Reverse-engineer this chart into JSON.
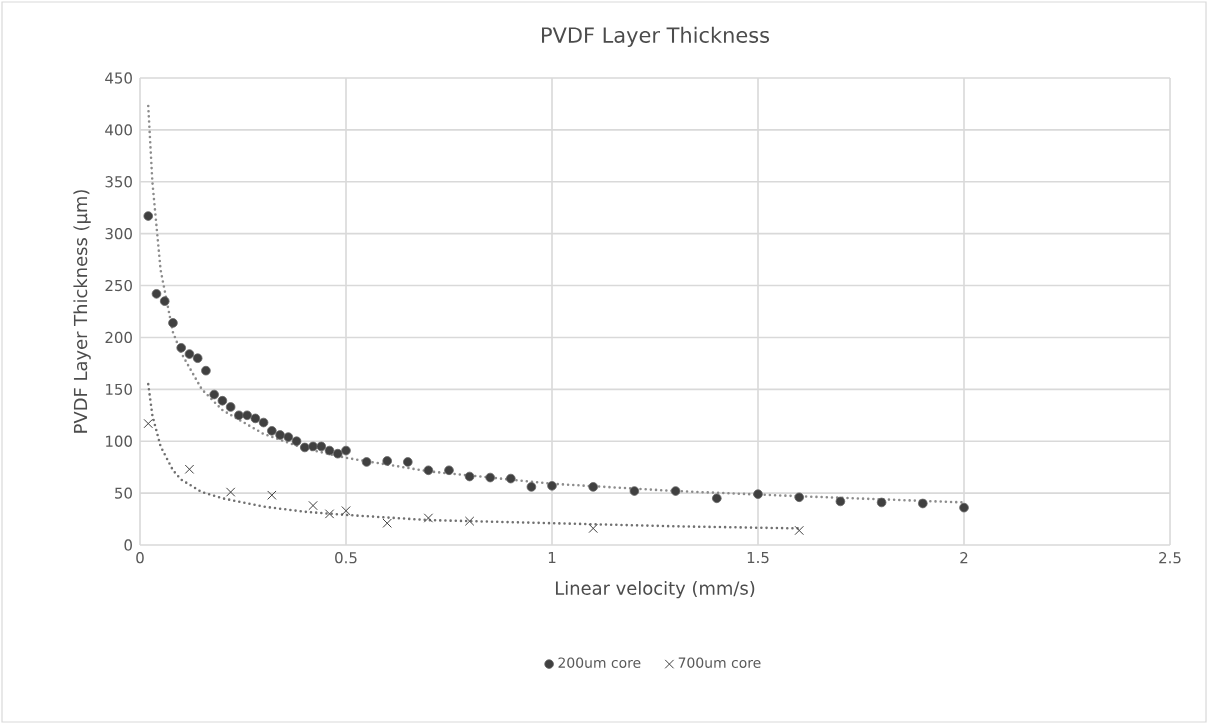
{
  "chart_data": {
    "type": "scatter",
    "title": "PVDF Layer Thickness",
    "xlabel": "Linear velocity (mm/s)",
    "ylabel": "PVDF Layer Thickness (µm)",
    "xlim": [
      0,
      2.5
    ],
    "xticks": [
      0,
      0.5,
      1,
      1.5,
      2,
      2.5
    ],
    "ylim": [
      0,
      450
    ],
    "yticks": [
      0,
      50,
      100,
      150,
      200,
      250,
      300,
      350,
      400,
      450
    ],
    "grid": true,
    "legend": "bottom",
    "series": [
      {
        "name": "200um core",
        "marker": "circle",
        "color": "#404040",
        "x": [
          0.02,
          0.04,
          0.06,
          0.08,
          0.1,
          0.12,
          0.14,
          0.16,
          0.18,
          0.2,
          0.22,
          0.24,
          0.26,
          0.28,
          0.3,
          0.32,
          0.34,
          0.36,
          0.38,
          0.4,
          0.42,
          0.44,
          0.46,
          0.48,
          0.5,
          0.55,
          0.6,
          0.65,
          0.7,
          0.75,
          0.8,
          0.85,
          0.9,
          0.95,
          1.0,
          1.1,
          1.2,
          1.3,
          1.4,
          1.5,
          1.6,
          1.7,
          1.8,
          1.9,
          2.0
        ],
        "values": [
          317,
          242,
          235,
          214,
          190,
          184,
          180,
          168,
          145,
          139,
          133,
          125,
          125,
          122,
          118,
          110,
          106,
          104,
          100,
          94,
          95,
          95,
          91,
          88,
          91,
          80,
          81,
          80,
          72,
          72,
          66,
          65,
          64,
          56,
          57,
          56,
          52,
          52,
          45,
          49,
          46,
          42,
          41,
          40,
          36
        ]
      },
      {
        "name": "700um core",
        "marker": "cross",
        "color": "#404040",
        "x": [
          0.02,
          0.12,
          0.22,
          0.32,
          0.42,
          0.46,
          0.5,
          0.6,
          0.7,
          0.8,
          1.1,
          1.6
        ],
        "values": [
          117,
          73,
          51,
          48,
          38,
          30,
          33,
          21,
          26,
          23,
          16,
          14
        ]
      },
      {
        "type": "line",
        "marker": "none",
        "line_style": "dotted",
        "color": "#8c8c8c",
        "x": [
          0.02,
          0.03,
          0.05,
          0.08,
          0.1,
          0.15,
          0.2,
          0.3,
          0.4,
          0.5,
          0.7,
          1.0,
          1.3,
          1.6,
          2.0
        ],
        "values": [
          423,
          350,
          265,
          205,
          185,
          150,
          130,
          107,
          93,
          84,
          71,
          59,
          52,
          47,
          41
        ]
      },
      {
        "type": "line",
        "marker": "none",
        "line_style": "dotted",
        "color": "#707070",
        "x": [
          0.02,
          0.03,
          0.05,
          0.08,
          0.1,
          0.15,
          0.2,
          0.3,
          0.4,
          0.5,
          0.7,
          1.0,
          1.3,
          1.6
        ],
        "values": [
          155,
          125,
          95,
          72,
          63,
          51,
          45,
          37,
          32,
          29,
          24,
          21,
          18,
          16
        ]
      }
    ]
  }
}
